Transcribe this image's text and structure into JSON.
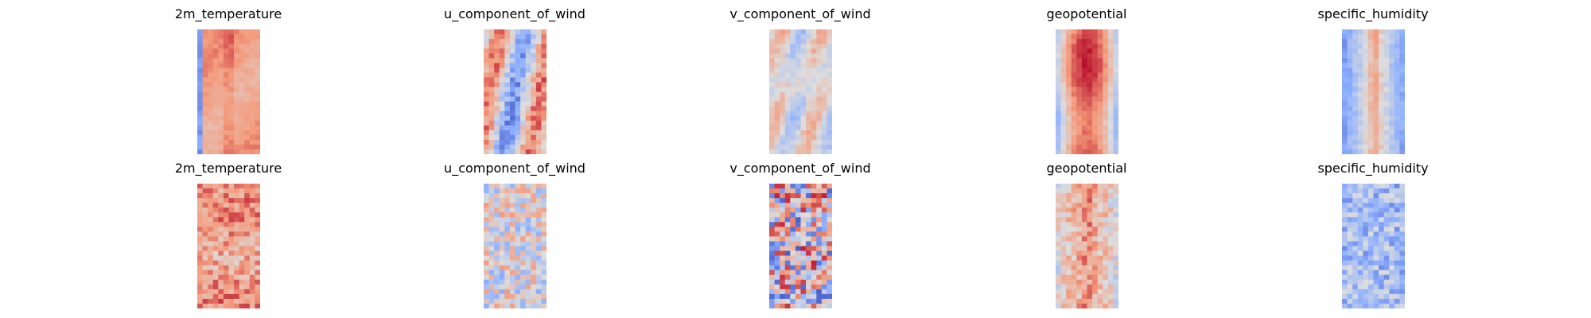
{
  "chart_data": {
    "type": "heatmap",
    "colormap": "coolwarm",
    "axes": "off",
    "layout": {
      "rows": 2,
      "cols": 5
    },
    "variables": [
      "2m_temperature",
      "u_component_of_wind",
      "v_component_of_wind",
      "geopotential",
      "specific_humidity"
    ],
    "panels": [
      {
        "title": "2m_temperature",
        "row": 0,
        "col": 0,
        "pattern": "warm_core_with_cool_left_edge",
        "min": 0.0,
        "max": 1.0
      },
      {
        "title": "u_component_of_wind",
        "row": 0,
        "col": 1,
        "pattern": "mixed_streaks",
        "min": 0.0,
        "max": 1.0
      },
      {
        "title": "v_component_of_wind",
        "row": 0,
        "col": 2,
        "pattern": "neutral_with_swirls",
        "min": 0.0,
        "max": 1.0
      },
      {
        "title": "geopotential",
        "row": 0,
        "col": 3,
        "pattern": "warm_core_with_cool_edges",
        "min": 0.0,
        "max": 1.0
      },
      {
        "title": "specific_humidity",
        "row": 0,
        "col": 4,
        "pattern": "cool_with_warm_center_band",
        "min": 0.0,
        "max": 1.0
      },
      {
        "title": "2m_temperature",
        "row": 1,
        "col": 0,
        "pattern": "noisy_warm",
        "min": 0.0,
        "max": 1.0
      },
      {
        "title": "u_component_of_wind",
        "row": 1,
        "col": 1,
        "pattern": "noisy_mixed",
        "min": 0.0,
        "max": 1.0
      },
      {
        "title": "v_component_of_wind",
        "row": 1,
        "col": 2,
        "pattern": "noisy_high_contrast",
        "min": 0.0,
        "max": 1.0
      },
      {
        "title": "geopotential",
        "row": 1,
        "col": 3,
        "pattern": "noisy_warm_center",
        "min": 0.0,
        "max": 1.0
      },
      {
        "title": "specific_humidity",
        "row": 1,
        "col": 4,
        "pattern": "noisy_cool",
        "min": 0.0,
        "max": 1.0
      }
    ]
  }
}
